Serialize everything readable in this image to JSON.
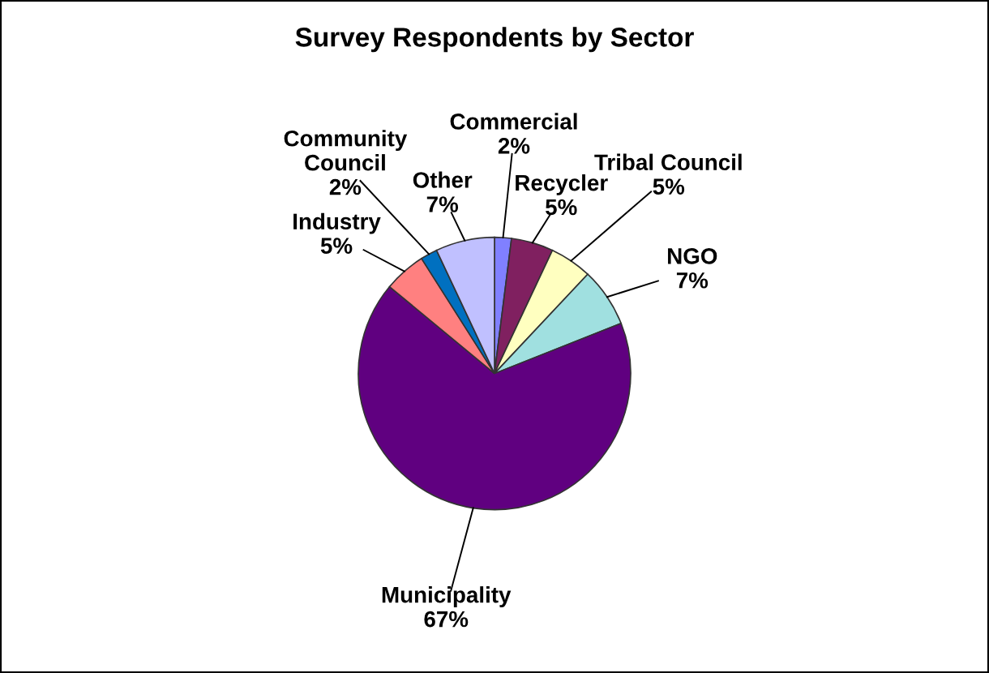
{
  "chart_data": {
    "type": "pie",
    "title": "Survey Respondents by Sector",
    "categories": [
      "Commercial",
      "Recycler",
      "Tribal Council",
      "NGO",
      "Municipality",
      "Industry",
      "Community Council",
      "Other"
    ],
    "values": [
      2,
      5,
      5,
      7,
      67,
      5,
      2,
      7
    ],
    "value_labels": [
      "2%",
      "5%",
      "5%",
      "7%",
      "67%",
      "5%",
      "2%",
      "7%"
    ],
    "colors": [
      "#8080ff",
      "#802060",
      "#ffffc0",
      "#a0e0e0",
      "#600080",
      "#ff8080",
      "#0070c0",
      "#c0c0ff"
    ],
    "legend": false
  }
}
